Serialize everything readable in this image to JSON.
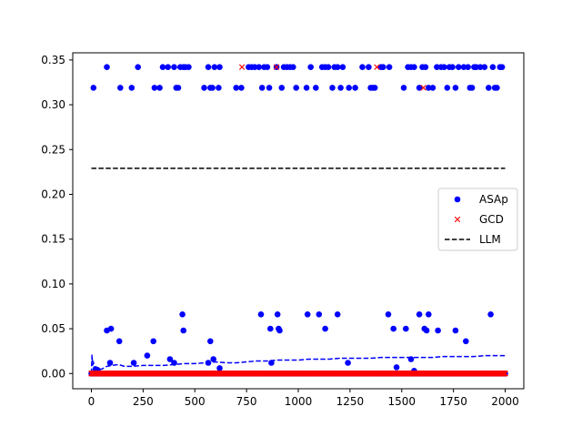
{
  "chart_data": {
    "type": "scatter",
    "xlim": [
      -90,
      2090
    ],
    "ylim": [
      -0.017,
      0.358
    ],
    "x_ticks": [
      0,
      250,
      500,
      750,
      1000,
      1250,
      1500,
      1750,
      2000
    ],
    "y_ticks": [
      0.0,
      0.05,
      0.1,
      0.15,
      0.2,
      0.25,
      0.3,
      0.35
    ],
    "y_tick_labels": [
      "0.00",
      "0.05",
      "0.10",
      "0.15",
      "0.20",
      "0.25",
      "0.30",
      "0.35"
    ],
    "grid": false,
    "legend_position": "center-right",
    "colors": {
      "asap": "#0000ff",
      "gcd": "#ff0000",
      "llm": "#000000"
    },
    "series": [
      {
        "name": "ASAp",
        "kind": "scatter",
        "marker": "circle",
        "baseline": {
          "x_start": 0,
          "x_end": 2000,
          "y": 0.0
        },
        "points": [
          [
            10,
            0.319
          ],
          [
            75,
            0.342
          ],
          [
            140,
            0.319
          ],
          [
            195,
            0.319
          ],
          [
            225,
            0.342
          ],
          [
            305,
            0.319
          ],
          [
            330,
            0.319
          ],
          [
            345,
            0.342
          ],
          [
            370,
            0.342
          ],
          [
            400,
            0.342
          ],
          [
            410,
            0.319
          ],
          [
            420,
            0.319
          ],
          [
            430,
            0.342
          ],
          [
            445,
            0.342
          ],
          [
            455,
            0.342
          ],
          [
            470,
            0.342
          ],
          [
            545,
            0.319
          ],
          [
            565,
            0.342
          ],
          [
            575,
            0.319
          ],
          [
            585,
            0.319
          ],
          [
            595,
            0.342
          ],
          [
            615,
            0.319
          ],
          [
            620,
            0.342
          ],
          [
            700,
            0.319
          ],
          [
            725,
            0.319
          ],
          [
            760,
            0.342
          ],
          [
            775,
            0.342
          ],
          [
            790,
            0.342
          ],
          [
            810,
            0.342
          ],
          [
            825,
            0.319
          ],
          [
            835,
            0.342
          ],
          [
            850,
            0.342
          ],
          [
            860,
            0.319
          ],
          [
            895,
            0.342
          ],
          [
            920,
            0.319
          ],
          [
            930,
            0.342
          ],
          [
            945,
            0.342
          ],
          [
            960,
            0.342
          ],
          [
            975,
            0.342
          ],
          [
            990,
            0.319
          ],
          [
            1040,
            0.319
          ],
          [
            1060,
            0.342
          ],
          [
            1085,
            0.319
          ],
          [
            1115,
            0.342
          ],
          [
            1130,
            0.342
          ],
          [
            1145,
            0.342
          ],
          [
            1165,
            0.319
          ],
          [
            1175,
            0.342
          ],
          [
            1190,
            0.342
          ],
          [
            1205,
            0.319
          ],
          [
            1215,
            0.342
          ],
          [
            1245,
            0.319
          ],
          [
            1275,
            0.319
          ],
          [
            1310,
            0.342
          ],
          [
            1340,
            0.342
          ],
          [
            1350,
            0.319
          ],
          [
            1360,
            0.319
          ],
          [
            1370,
            0.319
          ],
          [
            1400,
            0.342
          ],
          [
            1410,
            0.342
          ],
          [
            1440,
            0.342
          ],
          [
            1510,
            0.319
          ],
          [
            1530,
            0.342
          ],
          [
            1545,
            0.342
          ],
          [
            1560,
            0.342
          ],
          [
            1585,
            0.319
          ],
          [
            1600,
            0.342
          ],
          [
            1615,
            0.342
          ],
          [
            1630,
            0.319
          ],
          [
            1650,
            0.319
          ],
          [
            1670,
            0.342
          ],
          [
            1690,
            0.342
          ],
          [
            1705,
            0.342
          ],
          [
            1720,
            0.319
          ],
          [
            1730,
            0.342
          ],
          [
            1745,
            0.342
          ],
          [
            1760,
            0.319
          ],
          [
            1775,
            0.342
          ],
          [
            1800,
            0.342
          ],
          [
            1820,
            0.342
          ],
          [
            1830,
            0.319
          ],
          [
            1840,
            0.319
          ],
          [
            1850,
            0.342
          ],
          [
            1860,
            0.342
          ],
          [
            1880,
            0.342
          ],
          [
            1900,
            0.342
          ],
          [
            1920,
            0.319
          ],
          [
            1940,
            0.342
          ],
          [
            1950,
            0.319
          ],
          [
            1960,
            0.319
          ],
          [
            1975,
            0.342
          ],
          [
            1985,
            0.342
          ],
          [
            75,
            0.048
          ],
          [
            95,
            0.05
          ],
          [
            135,
            0.036
          ],
          [
            300,
            0.036
          ],
          [
            440,
            0.066
          ],
          [
            445,
            0.048
          ],
          [
            575,
            0.036
          ],
          [
            820,
            0.066
          ],
          [
            865,
            0.05
          ],
          [
            900,
            0.066
          ],
          [
            905,
            0.05
          ],
          [
            910,
            0.048
          ],
          [
            1045,
            0.066
          ],
          [
            1100,
            0.066
          ],
          [
            1130,
            0.05
          ],
          [
            1190,
            0.066
          ],
          [
            1435,
            0.066
          ],
          [
            1460,
            0.05
          ],
          [
            1520,
            0.05
          ],
          [
            1585,
            0.066
          ],
          [
            1610,
            0.05
          ],
          [
            1620,
            0.048
          ],
          [
            1630,
            0.066
          ],
          [
            1675,
            0.048
          ],
          [
            1760,
            0.048
          ],
          [
            1810,
            0.036
          ],
          [
            1930,
            0.066
          ],
          [
            20,
            0.005
          ],
          [
            30,
            0.004
          ],
          [
            90,
            0.012
          ],
          [
            205,
            0.012
          ],
          [
            270,
            0.02
          ],
          [
            380,
            0.016
          ],
          [
            400,
            0.012
          ],
          [
            565,
            0.012
          ],
          [
            590,
            0.016
          ],
          [
            620,
            0.006
          ],
          [
            870,
            0.012
          ],
          [
            1240,
            0.012
          ],
          [
            1475,
            0.007
          ],
          [
            1545,
            0.016
          ],
          [
            1560,
            0.003
          ]
        ]
      },
      {
        "name": "GCD",
        "kind": "scatter",
        "marker": "x",
        "baseline": {
          "x_start": 0,
          "x_end": 2000,
          "y": 0.0
        },
        "points": [
          [
            728,
            0.342
          ],
          [
            895,
            0.342
          ],
          [
            1380,
            0.342
          ],
          [
            1605,
            0.319
          ]
        ]
      },
      {
        "name": "LLM",
        "kind": "line",
        "style": "dashed",
        "points": [
          [
            0,
            0.229
          ],
          [
            2000,
            0.229
          ]
        ]
      },
      {
        "name": "",
        "kind": "line",
        "style": "dashed",
        "color_key": "asap",
        "points": [
          [
            0,
            0.0
          ],
          [
            3,
            0.021
          ],
          [
            6,
            0.009
          ],
          [
            10,
            0.012
          ],
          [
            15,
            0.006
          ],
          [
            20,
            0.005
          ],
          [
            30,
            0.004
          ],
          [
            50,
            0.005
          ],
          [
            75,
            0.008
          ],
          [
            100,
            0.009
          ],
          [
            130,
            0.01
          ],
          [
            160,
            0.008
          ],
          [
            200,
            0.008
          ],
          [
            250,
            0.009
          ],
          [
            300,
            0.009
          ],
          [
            350,
            0.009
          ],
          [
            400,
            0.01
          ],
          [
            450,
            0.011
          ],
          [
            500,
            0.011
          ],
          [
            550,
            0.012
          ],
          [
            600,
            0.013
          ],
          [
            650,
            0.012
          ],
          [
            700,
            0.012
          ],
          [
            750,
            0.013
          ],
          [
            800,
            0.014
          ],
          [
            850,
            0.014
          ],
          [
            900,
            0.015
          ],
          [
            950,
            0.015
          ],
          [
            1000,
            0.015
          ],
          [
            1050,
            0.016
          ],
          [
            1100,
            0.016
          ],
          [
            1150,
            0.016
          ],
          [
            1200,
            0.017
          ],
          [
            1250,
            0.017
          ],
          [
            1300,
            0.017
          ],
          [
            1350,
            0.017
          ],
          [
            1400,
            0.018
          ],
          [
            1450,
            0.018
          ],
          [
            1500,
            0.018
          ],
          [
            1550,
            0.018
          ],
          [
            1600,
            0.018
          ],
          [
            1650,
            0.018
          ],
          [
            1700,
            0.019
          ],
          [
            1750,
            0.019
          ],
          [
            1800,
            0.019
          ],
          [
            1850,
            0.019
          ],
          [
            1900,
            0.02
          ],
          [
            1950,
            0.02
          ],
          [
            2000,
            0.02
          ]
        ]
      }
    ]
  }
}
